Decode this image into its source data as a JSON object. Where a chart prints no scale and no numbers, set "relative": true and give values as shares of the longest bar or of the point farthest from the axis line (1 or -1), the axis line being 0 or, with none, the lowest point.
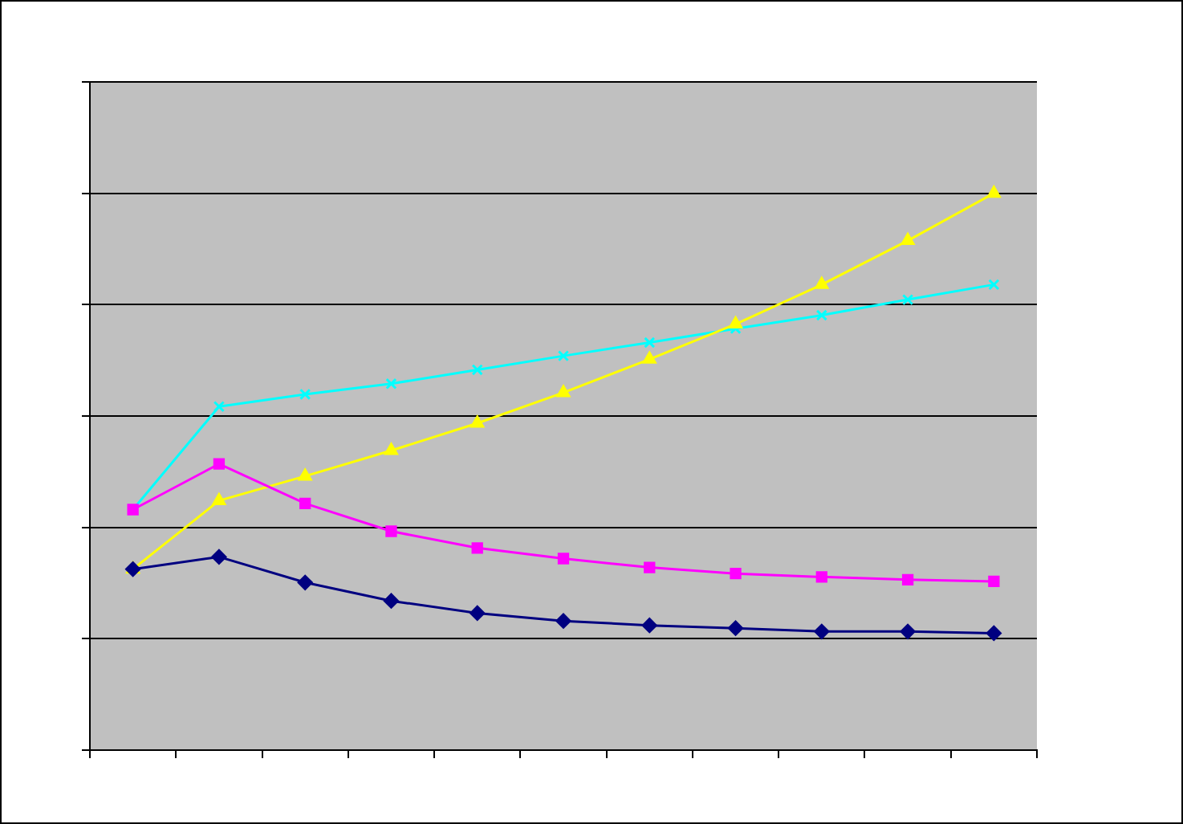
{
  "chart_data": {
    "type": "line",
    "relative": true,
    "categories": [
      null,
      null,
      null,
      null,
      null,
      null,
      null,
      null,
      null,
      null,
      null
    ],
    "series": [
      {
        "color": "#000080",
        "marker": "diamond",
        "values": [
          0.325,
          0.347,
          0.301,
          0.268,
          0.246,
          0.232,
          0.224,
          0.219,
          0.213,
          0.213,
          0.21
        ]
      },
      {
        "color": "#ff00ff",
        "marker": "square",
        "values": [
          0.432,
          0.514,
          0.443,
          0.393,
          0.363,
          0.344,
          0.328,
          0.317,
          0.311,
          0.306,
          0.303
        ]
      },
      {
        "color": "#ffff00",
        "marker": "triangle",
        "values": [
          0.325,
          0.448,
          0.492,
          0.538,
          0.587,
          0.642,
          0.702,
          0.765,
          0.836,
          0.915,
          1
        ]
      },
      {
        "color": "#00ffff",
        "marker": "cross",
        "values": [
          0.432,
          0.617,
          0.639,
          0.658,
          0.683,
          0.708,
          0.732,
          0.757,
          0.781,
          0.809,
          0.836
        ]
      }
    ],
    "grid": "y",
    "line_style": "solid"
  }
}
